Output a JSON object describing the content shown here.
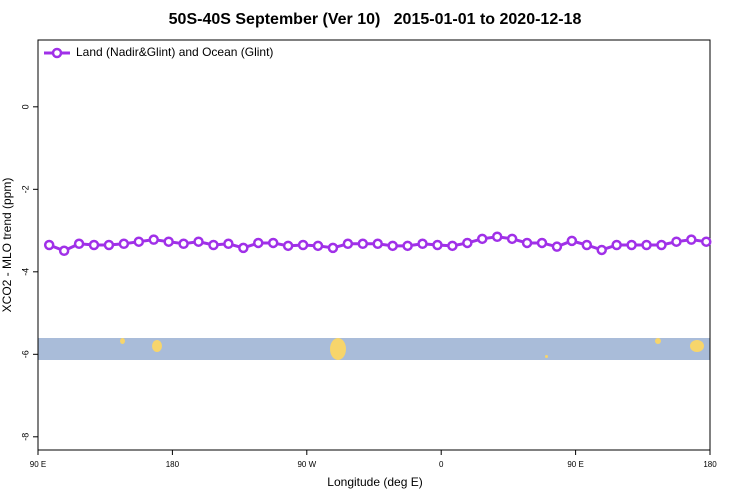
{
  "chart_data": {
    "type": "line",
    "title": "50S-40S September (Ver 10)   2015-01-01 to 2020-12-18",
    "x_label": "Longitude (deg E)",
    "y_label": "XCO2 - MLO trend (ppm)",
    "x": [
      97.5,
      107.5,
      117.5,
      127.5,
      137.5,
      147.5,
      157.5,
      167.5,
      177.5,
      187.5,
      197.5,
      207.5,
      217.5,
      227.5,
      237.5,
      247.5,
      257.5,
      267.5,
      277.5,
      287.5,
      297.5,
      307.5,
      317.5,
      327.5,
      337.5,
      347.5,
      357.5,
      367.5,
      377.5,
      387.5,
      397.5,
      407.5,
      417.5,
      427.5,
      437.5,
      447.5,
      457.5,
      467.5,
      477.5,
      487.5,
      497.5,
      507.5,
      517.5,
      527.5,
      537.5
    ],
    "series": [
      {
        "name": "Land (Nadir&Glint) and Ocean (Glint)",
        "color": "#a030e8",
        "values": [
          -3.35,
          -3.49,
          -3.32,
          -3.35,
          -3.35,
          -3.32,
          -3.27,
          -3.22,
          -3.27,
          -3.32,
          -3.27,
          -3.35,
          -3.32,
          -3.42,
          -3.3,
          -3.3,
          -3.37,
          -3.35,
          -3.37,
          -3.42,
          -3.32,
          -3.32,
          -3.32,
          -3.37,
          -3.37,
          -3.32,
          -3.35,
          -3.37,
          -3.3,
          -3.2,
          -3.15,
          -3.2,
          -3.3,
          -3.3,
          -3.39,
          -3.25,
          -3.35,
          -3.47,
          -3.35,
          -3.35,
          -3.35,
          -3.35,
          -3.27,
          -3.22,
          -3.27
        ]
      }
    ],
    "xlim": [
      90,
      540
    ],
    "xticks": [
      {
        "value": 90,
        "label": "90 E"
      },
      180,
      {
        "value": 270,
        "label": "90 W"
      },
      {
        "value": 360,
        "label": "0"
      },
      {
        "value": 450,
        "label": "90 E"
      },
      {
        "value": 540,
        "label": "180"
      }
    ],
    "ylim": [
      -8.32,
      1.62
    ],
    "yticks": [
      0,
      -2,
      -4,
      -6,
      -8
    ],
    "legend": "top-left"
  }
}
